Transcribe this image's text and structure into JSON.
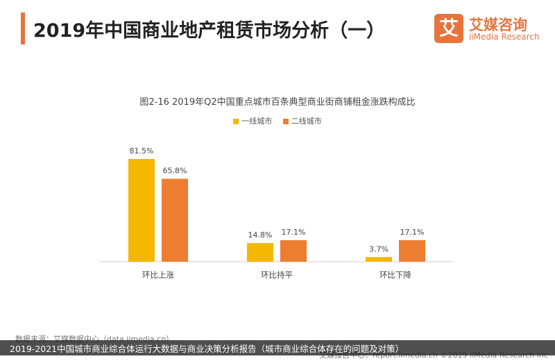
{
  "header": {
    "title": "2019年中国商业地产租赁市场分析（一）",
    "logo_icon": "艾",
    "logo_cn": "艾媒咨询",
    "logo_en": "iiMedia Research",
    "accent_color": "#e5743d"
  },
  "chart_data": {
    "type": "bar",
    "title": "图2-16 2019年Q2中国重点城市百条典型商业街商铺租金涨跌构成比",
    "categories": [
      "环比上涨",
      "环比持平",
      "环比下降"
    ],
    "series": [
      {
        "name": "一线城市",
        "values": [
          81.5,
          14.8,
          3.7
        ],
        "labels": [
          "81.5%",
          "14.8%",
          "3.7%"
        ],
        "color": "#f5b800"
      },
      {
        "name": "二线城市",
        "values": [
          65.8,
          17.1,
          17.1
        ],
        "labels": [
          "65.8%",
          "17.1%",
          "17.1%"
        ],
        "color": "#ed7d31"
      }
    ],
    "ylim": [
      0,
      100
    ],
    "grid": false,
    "legend": "top-center"
  },
  "footer": {
    "source": "数据来源：艾媒数据中心（data.iimedia.cn）",
    "copyright": "艾媒报告中心：report.iimedia.cn ©2019 iiMedia Research Inc",
    "caption": "2019-2021中国城市商业综合体运行大数据与商业决策分析报告（城市商业综合体存在的问题及对策）"
  }
}
